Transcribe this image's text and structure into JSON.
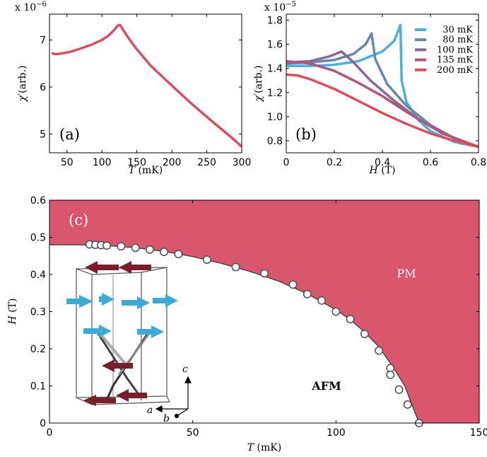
{
  "chart_data": [
    {
      "panel": "a",
      "type": "line",
      "panel_label": "(a)",
      "x_label_var": "T",
      "x_label_unit": " (mK)",
      "y_label_var": "χ′",
      "y_label_unit": "(arb.)",
      "y_multiplier": "x 10",
      "y_multiplier_exp": "−6",
      "xlim": [
        25,
        300
      ],
      "ylim": [
        4.6,
        7.55
      ],
      "x_ticks": [
        50,
        100,
        150,
        200,
        250,
        300
      ],
      "y_ticks": [
        5,
        6,
        7
      ],
      "series": [
        {
          "color": "#D94F62",
          "x": [
            28,
            32,
            36,
            40,
            45,
            55,
            70,
            85,
            100,
            110,
            118,
            123,
            126,
            130,
            140,
            150,
            170,
            200,
            230,
            260,
            285,
            300
          ],
          "y": [
            6.73,
            6.7,
            6.7,
            6.71,
            6.72,
            6.75,
            6.82,
            6.9,
            7.0,
            7.1,
            7.22,
            7.31,
            7.32,
            7.22,
            7.0,
            6.8,
            6.45,
            6.03,
            5.62,
            5.24,
            4.93,
            4.73
          ]
        }
      ]
    },
    {
      "panel": "b",
      "type": "line",
      "panel_label": "(b)",
      "x_label_var": "H",
      "x_label_unit": " (T)",
      "y_label_var": "χ′",
      "y_label_unit": "(arb.)",
      "y_multiplier": "x 10",
      "y_multiplier_exp": "−5",
      "xlim": [
        0,
        0.8
      ],
      "ylim": [
        0.7,
        1.85
      ],
      "x_ticks": [
        0,
        0.2,
        0.4,
        0.6,
        0.8
      ],
      "x_tick_labels": [
        "0",
        "0.2",
        "0.4",
        "0.6",
        "0.8"
      ],
      "y_ticks": [
        0.8,
        1.0,
        1.2,
        1.4,
        1.6,
        1.8
      ],
      "y_tick_labels": [
        "0.8",
        "1.0",
        "1.2",
        "1.4",
        "1.6",
        "1.8"
      ],
      "series": [
        {
          "name": "30 mK",
          "color": "#4BB0DC",
          "x": [
            0,
            0.1,
            0.2,
            0.3,
            0.4,
            0.45,
            0.475,
            0.48,
            0.5,
            0.55,
            0.6,
            0.7,
            0.8
          ],
          "y": [
            1.42,
            1.42,
            1.43,
            1.46,
            1.54,
            1.63,
            1.76,
            1.3,
            1.12,
            0.97,
            0.88,
            0.79,
            0.75
          ]
        },
        {
          "name": "80 mK",
          "color": "#6787B0",
          "x": [
            0,
            0.1,
            0.2,
            0.28,
            0.33,
            0.355,
            0.37,
            0.42,
            0.5,
            0.6,
            0.7,
            0.8
          ],
          "y": [
            1.44,
            1.45,
            1.47,
            1.52,
            1.6,
            1.69,
            1.48,
            1.27,
            1.09,
            0.93,
            0.82,
            0.75
          ]
        },
        {
          "name": "100 mK",
          "color": "#876A93",
          "x": [
            0,
            0.1,
            0.18,
            0.23,
            0.28,
            0.35,
            0.45,
            0.55,
            0.65,
            0.8
          ],
          "y": [
            1.45,
            1.46,
            1.5,
            1.54,
            1.45,
            1.3,
            1.13,
            0.98,
            0.86,
            0.75
          ]
        },
        {
          "name": "135 mK",
          "color": "#B25579",
          "x": [
            0,
            0.1,
            0.2,
            0.3,
            0.4,
            0.5,
            0.6,
            0.7,
            0.8
          ],
          "y": [
            1.46,
            1.44,
            1.38,
            1.28,
            1.17,
            1.04,
            0.92,
            0.82,
            0.75
          ]
        },
        {
          "name": "200 mK",
          "color": "#DD4D5E",
          "x": [
            0,
            0.05,
            0.1,
            0.2,
            0.3,
            0.4,
            0.5,
            0.6,
            0.7,
            0.8
          ],
          "y": [
            1.35,
            1.34,
            1.31,
            1.23,
            1.13,
            1.03,
            0.94,
            0.86,
            0.8,
            0.75
          ]
        }
      ]
    },
    {
      "panel": "c",
      "type": "scatter",
      "panel_label": "(c)",
      "x_label_var": "T",
      "x_label_unit": " (mK)",
      "y_label_var": "H",
      "y_label_unit": " (T)",
      "xlim": [
        0,
        150
      ],
      "ylim": [
        0,
        0.6
      ],
      "x_ticks": [
        0,
        50,
        100,
        150
      ],
      "y_ticks": [
        0,
        0.1,
        0.2,
        0.3,
        0.4,
        0.5,
        0.6
      ],
      "y_tick_labels": [
        "0",
        "0.1",
        "0.2",
        "0.3",
        "0.4",
        "0.5",
        "0.6"
      ],
      "region_labels": {
        "upper": "PM",
        "lower": "AFM"
      },
      "fill_color": "#D9566C",
      "boundary_x": [
        0,
        10,
        20,
        30,
        40,
        50,
        60,
        70,
        80,
        90,
        100,
        105,
        110,
        115,
        120,
        124,
        126,
        128,
        129
      ],
      "boundary_y": [
        0.48,
        0.48,
        0.478,
        0.472,
        0.462,
        0.448,
        0.43,
        0.408,
        0.382,
        0.348,
        0.305,
        0.278,
        0.245,
        0.205,
        0.15,
        0.1,
        0.06,
        0.02,
        0
      ],
      "points_x": [
        14,
        16,
        18,
        20,
        25,
        30,
        35,
        40,
        45,
        55,
        65,
        75,
        85,
        90,
        95,
        100,
        105,
        110,
        115,
        119,
        119,
        122,
        125,
        129
      ],
      "points_y": [
        0.481,
        0.48,
        0.479,
        0.478,
        0.476,
        0.472,
        0.467,
        0.461,
        0.455,
        0.44,
        0.42,
        0.403,
        0.373,
        0.347,
        0.33,
        0.3,
        0.28,
        0.24,
        0.195,
        0.148,
        0.13,
        0.09,
        0.05,
        0.0
      ],
      "crystal_axes": [
        "c",
        "a",
        "b"
      ]
    }
  ]
}
